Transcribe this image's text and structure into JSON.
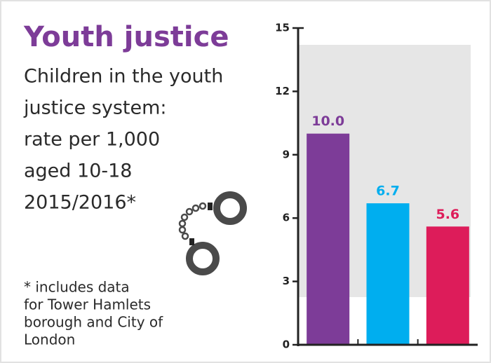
{
  "chart_data": {
    "type": "bar",
    "title": "Youth justice",
    "subtitle": [
      "Children in the youth",
      "justice system:",
      "rate per 1,000",
      "aged 10-18",
      "2015/2016*"
    ],
    "annotation": [
      "* includes data",
      "for Tower Hamlets",
      "borough and City of",
      "London"
    ],
    "categories": [
      null,
      null,
      null
    ],
    "values": [
      10.0,
      6.7,
      5.6
    ],
    "value_labels": [
      "10.0",
      "6.7",
      "5.6"
    ],
    "colors": [
      "#7d3c98",
      "#00aeef",
      "#dd1c5a"
    ],
    "ylim": [
      0,
      15
    ],
    "yticks": [
      0,
      3,
      6,
      9,
      12,
      15
    ]
  }
}
